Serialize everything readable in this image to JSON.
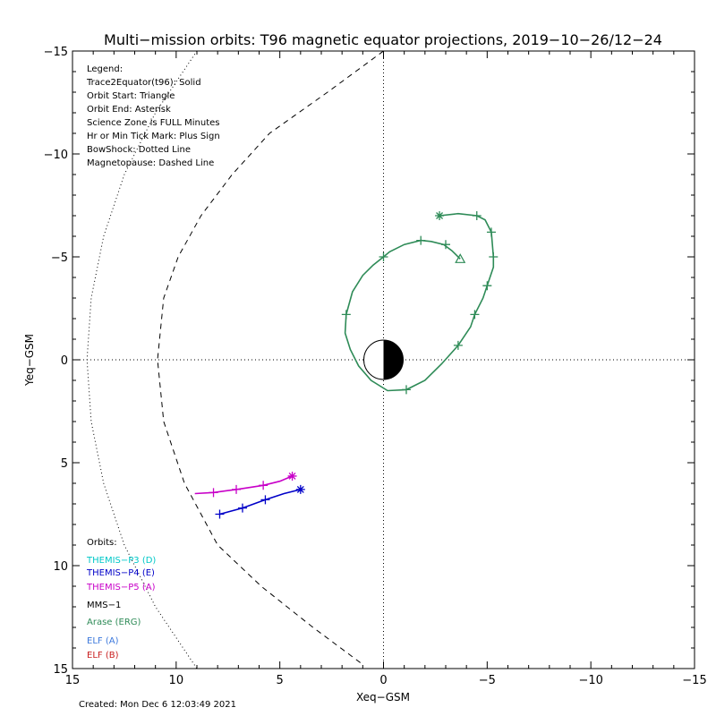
{
  "chart_data": {
    "type": "scatter",
    "title": "Multi−mission orbits: T96 magnetic equator projections, 2019−10−26/12−24",
    "xlabel": "Xeq−GSM",
    "ylabel": "Yeq−GSM",
    "xlim": [
      15,
      -15
    ],
    "ylim": [
      -15,
      15
    ],
    "x_ticks": [
      {
        "value": 15,
        "label": "15"
      },
      {
        "value": 10,
        "label": "10"
      },
      {
        "value": 5,
        "label": "5"
      },
      {
        "value": 0,
        "label": "0"
      },
      {
        "value": -5,
        "label": "−5"
      },
      {
        "value": -10,
        "label": "−10"
      },
      {
        "value": -15,
        "label": "−15"
      }
    ],
    "y_ticks": [
      {
        "value": -15,
        "label": "−15"
      },
      {
        "value": -10,
        "label": "−10"
      },
      {
        "value": -5,
        "label": "−5"
      },
      {
        "value": 0,
        "label": "0"
      },
      {
        "value": 5,
        "label": "5"
      },
      {
        "value": 10,
        "label": "10"
      },
      {
        "value": 15,
        "label": "15"
      }
    ],
    "legend": {
      "placement": "top-left",
      "items": [
        "Legend:",
        "Trace2Equator(t96): Solid",
        "Orbit Start: Triangle",
        "Orbit End: Asterisk",
        "Science Zone is FULL Minutes",
        "Hr or Min Tick Mark: Plus Sign",
        "BowShock: Dotted Line",
        "Magnetopause: Dashed Line"
      ]
    },
    "orbits_legend": {
      "placement": "bottom-left",
      "heading": "Orbits:",
      "items": [
        {
          "label": "THEMIS−P3 (D)",
          "color": "#00c8c8"
        },
        {
          "label": "THEMIS−P4 (E)",
          "color": "#0000c8"
        },
        {
          "label": "THEMIS−P5 (A)",
          "color": "#c800c8"
        },
        {
          "label": "MMS−1",
          "color": "#000000"
        },
        {
          "label": "Arase (ERG)",
          "color": "#2e8b57"
        },
        {
          "label": "ELF (A)",
          "color": "#3c78dc"
        },
        {
          "label": "ELF (B)",
          "color": "#c81e1e"
        }
      ]
    },
    "series": [
      {
        "name": "Arase (ERG)",
        "color": "#2e8b57",
        "points": [
          [
            -3.7,
            -4.9
          ],
          [
            -3.3,
            -5.3
          ],
          [
            -2.9,
            -5.6
          ],
          [
            -2.3,
            -5.75
          ],
          [
            -1.8,
            -5.8
          ],
          [
            -1.0,
            -5.6
          ],
          [
            -0.3,
            -5.25
          ],
          [
            0.0,
            -5.0
          ],
          [
            0.5,
            -4.6
          ],
          [
            1.0,
            -4.1
          ],
          [
            1.5,
            -3.3
          ],
          [
            1.8,
            -2.2
          ],
          [
            1.85,
            -1.3
          ],
          [
            1.6,
            -0.5
          ],
          [
            1.2,
            0.3
          ],
          [
            0.6,
            1.0
          ],
          [
            -0.2,
            1.5
          ],
          [
            -1.1,
            1.45
          ],
          [
            -2.0,
            1.0
          ],
          [
            -2.8,
            0.2
          ],
          [
            -3.6,
            -0.7
          ],
          [
            -4.2,
            -1.6
          ],
          [
            -4.4,
            -2.2
          ],
          [
            -4.8,
            -3.0
          ],
          [
            -5.0,
            -3.6
          ],
          [
            -5.3,
            -4.5
          ],
          [
            -5.3,
            -5.0
          ],
          [
            -5.2,
            -6.2
          ],
          [
            -4.9,
            -6.8
          ],
          [
            -4.5,
            -7.0
          ],
          [
            -3.6,
            -7.1
          ],
          [
            -2.7,
            -7.0
          ]
        ],
        "ticks": [
          [
            -3.0,
            -5.6
          ],
          [
            -1.8,
            -5.8
          ],
          [
            0.0,
            -5.0
          ],
          [
            1.8,
            -2.2
          ],
          [
            -1.1,
            1.45
          ],
          [
            -3.6,
            -0.7
          ],
          [
            -4.4,
            -2.2
          ],
          [
            -5.0,
            -3.6
          ],
          [
            -5.3,
            -5.0
          ],
          [
            -5.2,
            -6.2
          ],
          [
            -4.5,
            -7.0
          ]
        ],
        "start": [
          -3.7,
          -4.9
        ],
        "end": [
          -2.7,
          -7.0
        ]
      },
      {
        "name": "THEMIS−P5 (A)",
        "color": "#c800c8",
        "points": [
          [
            9.1,
            6.5
          ],
          [
            8.2,
            6.45
          ],
          [
            7.1,
            6.3
          ],
          [
            5.8,
            6.1
          ],
          [
            5.0,
            5.9
          ],
          [
            4.4,
            5.65
          ]
        ],
        "ticks": [
          [
            8.2,
            6.45
          ],
          [
            7.1,
            6.3
          ],
          [
            5.8,
            6.1
          ]
        ],
        "end": [
          4.4,
          5.65
        ]
      },
      {
        "name": "THEMIS−P4 (E)",
        "color": "#0000c8",
        "points": [
          [
            7.9,
            7.5
          ],
          [
            6.8,
            7.2
          ],
          [
            5.7,
            6.8
          ],
          [
            4.8,
            6.5
          ],
          [
            4.0,
            6.3
          ]
        ],
        "ticks": [
          [
            7.9,
            7.5
          ],
          [
            6.8,
            7.2
          ],
          [
            5.7,
            6.8
          ]
        ],
        "end": [
          4.0,
          6.3
        ]
      }
    ],
    "bow_shock": [
      [
        9.0,
        -15.0
      ],
      [
        11.0,
        -12.0
      ],
      [
        12.5,
        -9.0
      ],
      [
        13.5,
        -6.0
      ],
      [
        14.1,
        -3.0
      ],
      [
        14.3,
        0.0
      ],
      [
        14.1,
        3.0
      ],
      [
        13.5,
        6.0
      ],
      [
        12.5,
        9.0
      ],
      [
        11.0,
        12.0
      ],
      [
        9.0,
        15.0
      ]
    ],
    "magnetopause": [
      [
        0.0,
        -15.0
      ],
      [
        2.7,
        -13.0
      ],
      [
        5.5,
        -11.0
      ],
      [
        7.3,
        -9.0
      ],
      [
        8.8,
        -7.0
      ],
      [
        9.9,
        -5.0
      ],
      [
        10.6,
        -3.0
      ],
      [
        10.9,
        0.0
      ],
      [
        10.6,
        3.0
      ],
      [
        9.6,
        6.0
      ],
      [
        8.0,
        9.0
      ],
      [
        5.9,
        11.0
      ],
      [
        3.4,
        13.0
      ],
      [
        1.0,
        14.8
      ]
    ],
    "footer": "Created: Mon Dec  6 12:03:49 2021"
  }
}
